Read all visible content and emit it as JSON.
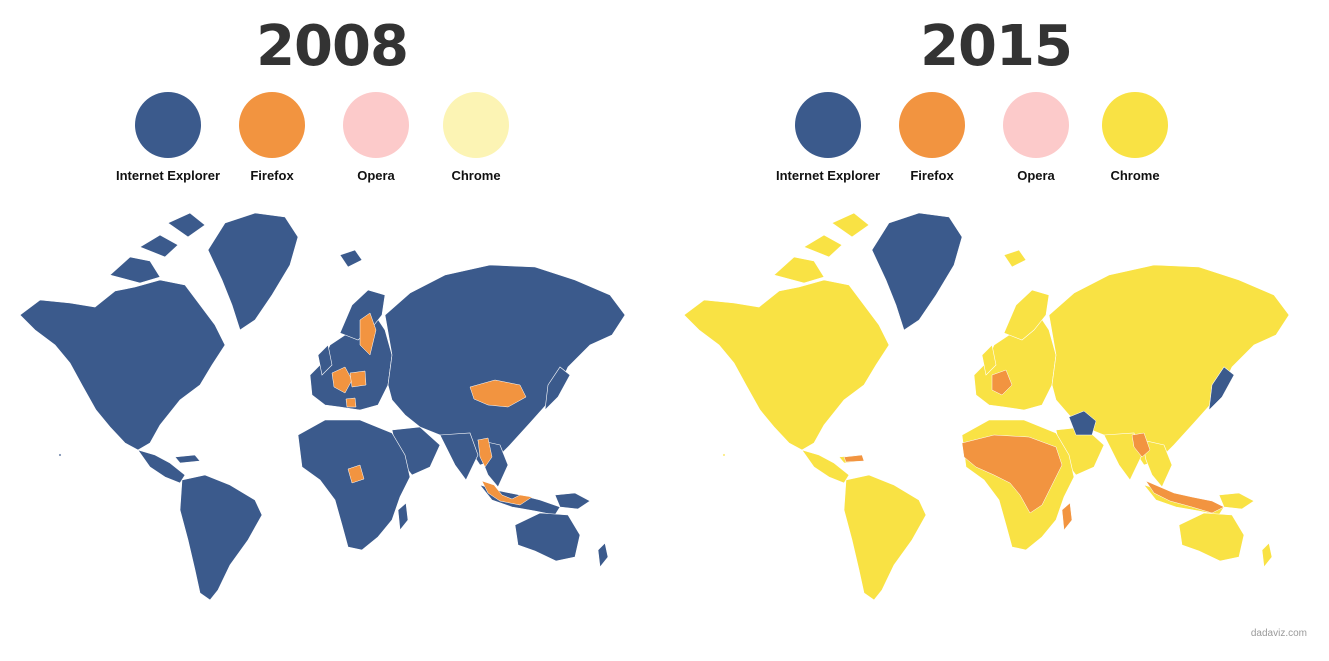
{
  "credit": "dadaviz.com",
  "colors": {
    "internet_explorer": "#3b5a8c",
    "firefox": "#f29440",
    "opera": "#fccaca",
    "chrome_2008": "#fcf4b4",
    "chrome_2015": "#f9e244",
    "background": "#ffffff"
  },
  "panels": [
    {
      "year": "2008",
      "legend": [
        {
          "label": "Internet Explorer",
          "color": "#3b5a8c"
        },
        {
          "label": "Firefox",
          "color": "#f29440"
        },
        {
          "label": "Opera",
          "color": "#fccaca"
        },
        {
          "label": "Chrome",
          "color": "#fcf4b4"
        }
      ],
      "base_color": "#3b5a8c",
      "highlight_regions": [
        {
          "region": "Finland",
          "browser": "Firefox"
        },
        {
          "region": "Germany",
          "browser": "Firefox"
        },
        {
          "region": "Poland",
          "browser": "Firefox"
        },
        {
          "region": "Slovenia",
          "browser": "Firefox"
        },
        {
          "region": "Mongolia",
          "browser": "Firefox"
        },
        {
          "region": "Myanmar",
          "browser": "Firefox"
        },
        {
          "region": "Indonesia",
          "browser": "Firefox"
        },
        {
          "region": "Cameroon",
          "browser": "Firefox"
        }
      ]
    },
    {
      "year": "2015",
      "legend": [
        {
          "label": "Internet Explorer",
          "color": "#3b5a8c"
        },
        {
          "label": "Firefox",
          "color": "#f29440"
        },
        {
          "label": "Opera",
          "color": "#fccaca"
        },
        {
          "label": "Chrome",
          "color": "#f9e244"
        }
      ],
      "base_color": "#f9e244",
      "highlight_regions": [
        {
          "region": "Greenland",
          "browser": "Internet Explorer"
        },
        {
          "region": "Iran",
          "browser": "Internet Explorer"
        },
        {
          "region": "Japan",
          "browser": "Internet Explorer"
        },
        {
          "region": "Germany",
          "browser": "Firefox"
        },
        {
          "region": "Cuba",
          "browser": "Firefox"
        },
        {
          "region": "Central Africa",
          "browser": "Firefox"
        },
        {
          "region": "Madagascar",
          "browser": "Firefox"
        },
        {
          "region": "Bangladesh",
          "browser": "Firefox"
        },
        {
          "region": "Indonesia",
          "browser": "Firefox"
        }
      ]
    }
  ]
}
